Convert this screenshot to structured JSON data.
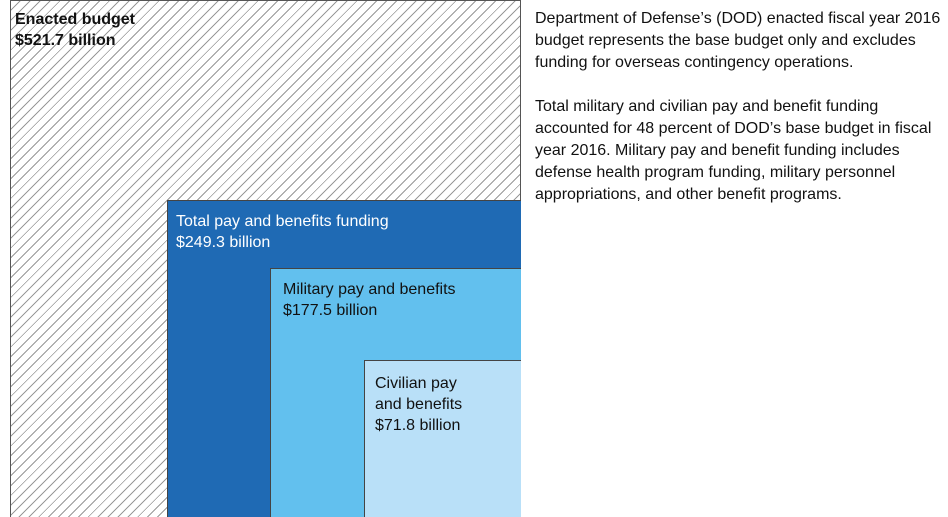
{
  "boxes": [
    {
      "label": "Enacted budget",
      "amount": "$521.7 billion"
    },
    {
      "label": "Total pay and benefits funding",
      "amount": "$249.3 billion"
    },
    {
      "label": "Military pay and benefits",
      "amount": "$177.5 billion"
    },
    {
      "label": "Civilian pay and benefits",
      "amount": "$71.8 billion"
    }
  ],
  "notes": [
    "Department of Defense’s (DOD) enacted fiscal year 2016 budget represents the base budget only and excludes funding for overseas contingency operations.",
    "Total military and civilian pay and benefit funding accounted for 48 percent of DOD’s base budget in fiscal year 2016. Military pay and benefit funding includes defense health program funding, military personnel appropriations, and other benefit programs."
  ]
}
